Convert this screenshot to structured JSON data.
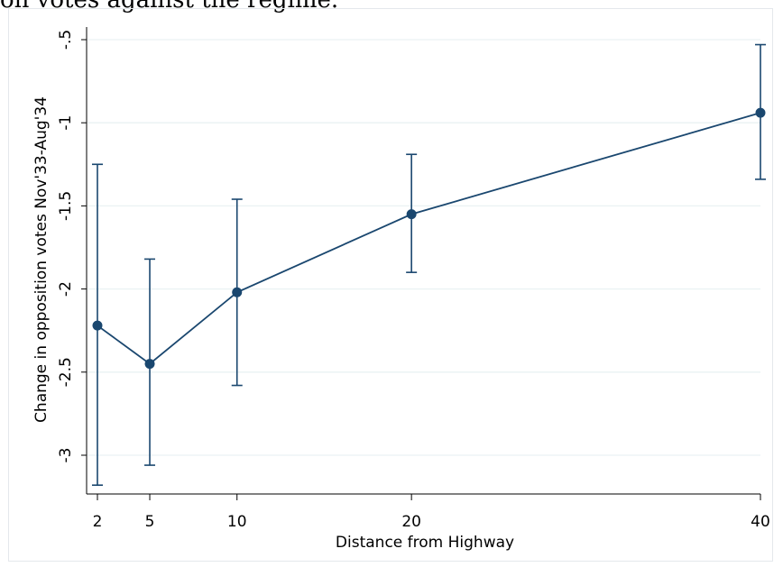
{
  "caption": "on votes against the regime.",
  "chart_data": {
    "type": "line",
    "title": "",
    "xlabel": "Distance from Highway",
    "ylabel": "Change in opposition votes Nov'33-Aug'34",
    "x": [
      2,
      5,
      10,
      20,
      40
    ],
    "series": [
      {
        "values": [
          -2.22,
          -2.45,
          -2.02,
          -1.55,
          -0.94
        ],
        "ci_low": [
          -3.18,
          -3.06,
          -2.58,
          -1.9,
          -1.34
        ],
        "ci_high": [
          -1.25,
          -1.82,
          -1.46,
          -1.19,
          -0.53
        ]
      }
    ],
    "xticks": [
      2,
      5,
      10,
      20,
      40
    ],
    "xtick_labels": [
      "2",
      "5",
      "10",
      "20",
      "40"
    ],
    "yticks": [
      -3,
      -2.5,
      -2,
      -1.5,
      -1,
      -0.5
    ],
    "ytick_labels": [
      "-3",
      "-2.5",
      "-2",
      "-1.5",
      "-1",
      "-.5"
    ],
    "xlim": [
      2,
      40
    ],
    "ylim": [
      -3.2,
      -0.5
    ],
    "grid": true,
    "colors": {
      "line": "#1a476f",
      "grid": "#eaf2f3",
      "axis": "#000000"
    }
  }
}
